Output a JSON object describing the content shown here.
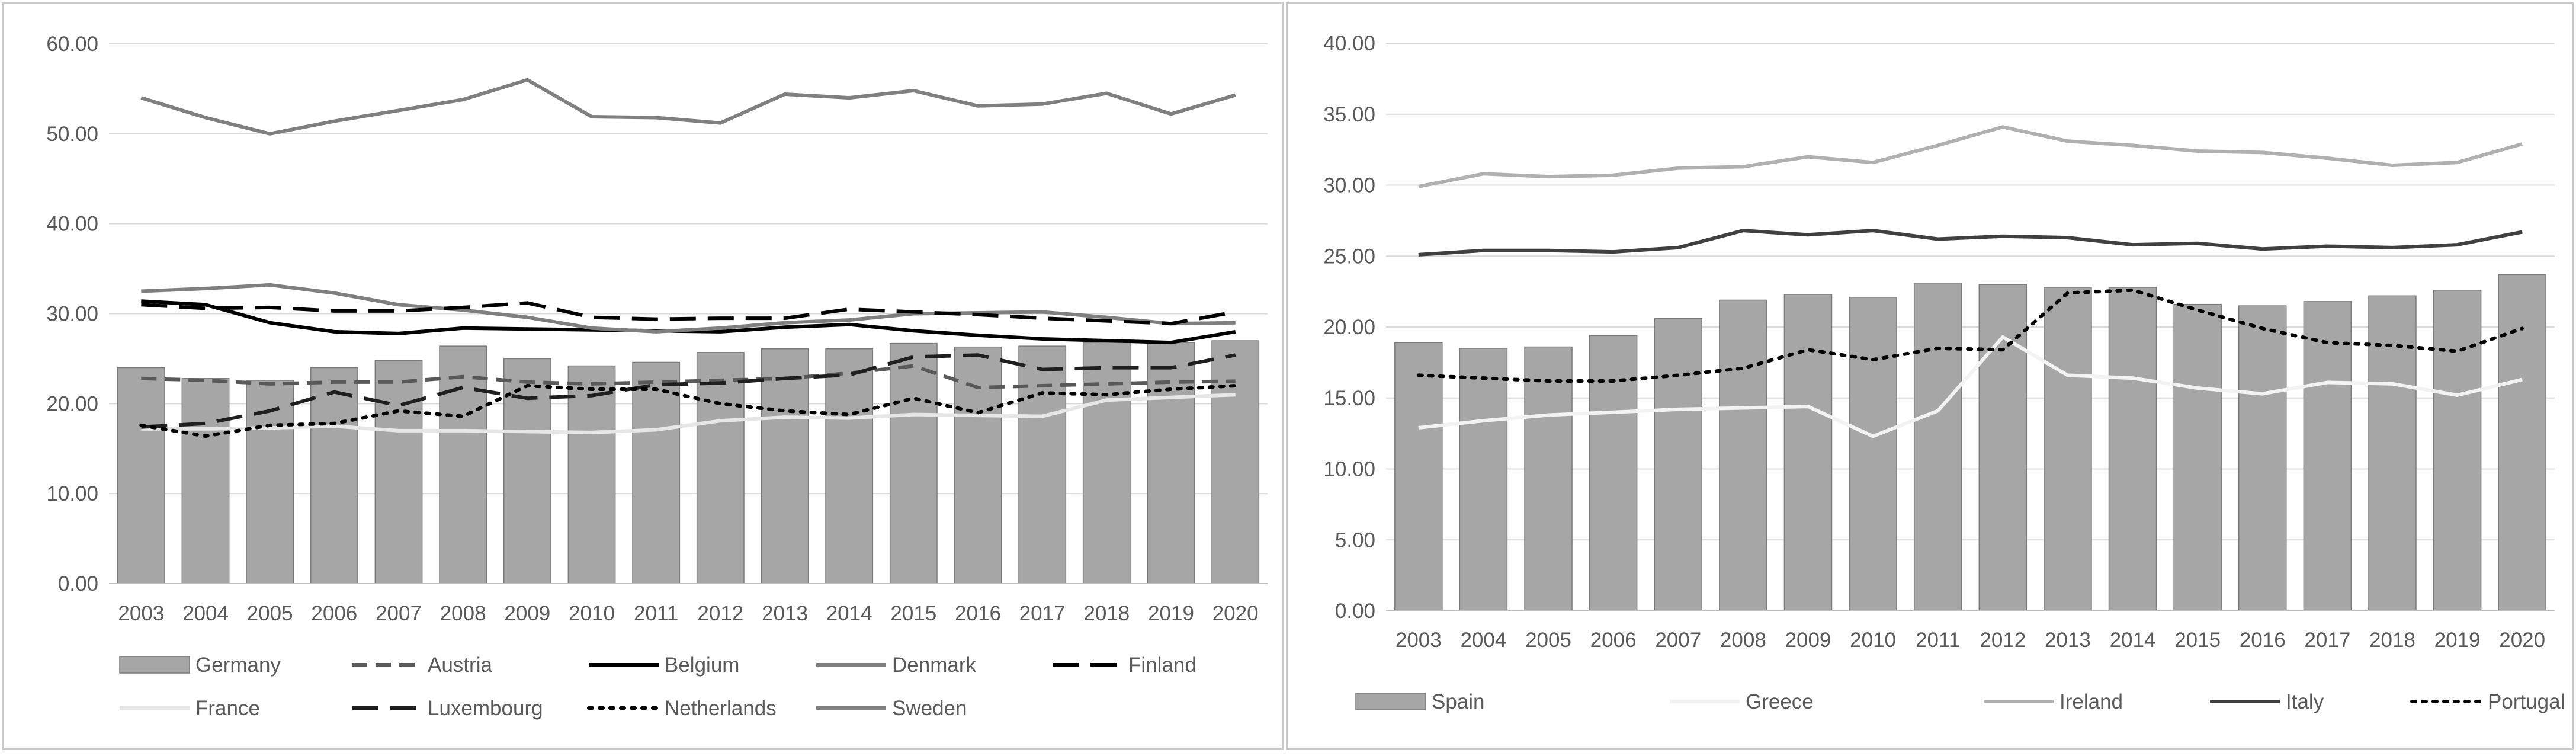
{
  "chart_data": [
    {
      "type": "bar+line",
      "title": "",
      "xlabel": "",
      "ylabel": "",
      "ylim": [
        0,
        60
      ],
      "yticks": [
        "0.00",
        "10.00",
        "20.00",
        "30.00",
        "40.00",
        "50.00",
        "60.00"
      ],
      "categories": [
        "2003",
        "2004",
        "2005",
        "2006",
        "2007",
        "2008",
        "2009",
        "2010",
        "2011",
        "2012",
        "2013",
        "2014",
        "2015",
        "2016",
        "2017",
        "2018",
        "2019",
        "2020"
      ],
      "grid": true,
      "legend_position": "bottom",
      "bar_series": {
        "name": "Germany",
        "color": "#a6a6a6",
        "values": [
          24.0,
          22.8,
          22.6,
          24.0,
          24.8,
          26.4,
          25.0,
          24.2,
          24.6,
          25.7,
          26.1,
          26.1,
          26.7,
          26.3,
          26.4,
          26.8,
          26.8,
          27.0
        ]
      },
      "line_series": [
        {
          "name": "Austria",
          "style": "dashed",
          "color": "#595959",
          "values": [
            22.8,
            22.6,
            22.2,
            22.4,
            22.4,
            23.0,
            22.4,
            22.2,
            22.4,
            22.6,
            22.8,
            23.4,
            24.2,
            21.8,
            22.0,
            22.2,
            22.4,
            22.5
          ]
        },
        {
          "name": "Belgium",
          "style": "solid",
          "color": "#000000",
          "values": [
            31.4,
            31.0,
            29.0,
            28.0,
            27.8,
            28.4,
            28.3,
            28.2,
            28.1,
            28.0,
            28.5,
            28.8,
            28.1,
            27.6,
            27.2,
            27.0,
            26.8,
            28.0
          ]
        },
        {
          "name": "Denmark",
          "style": "solid",
          "color": "#7f7f7f",
          "values": [
            32.5,
            32.8,
            33.2,
            32.3,
            31.0,
            30.4,
            29.6,
            28.4,
            28.0,
            28.4,
            29.0,
            29.3,
            30.0,
            30.1,
            30.2,
            29.6,
            28.9,
            29.0
          ]
        },
        {
          "name": "Finland",
          "style": "longdash",
          "color": "#000000",
          "values": [
            31.0,
            30.6,
            30.7,
            30.3,
            30.3,
            30.7,
            31.2,
            29.6,
            29.4,
            29.5,
            29.5,
            30.5,
            30.2,
            29.9,
            29.5,
            29.2,
            28.9,
            30.2
          ]
        },
        {
          "name": "France",
          "style": "solid",
          "color": "#e6e6e6",
          "values": [
            17.2,
            17.2,
            17.3,
            17.5,
            17.0,
            17.0,
            16.9,
            16.8,
            17.1,
            18.1,
            18.5,
            18.4,
            18.8,
            18.7,
            18.6,
            20.4,
            20.7,
            21.0
          ]
        },
        {
          "name": "Luxembourg",
          "style": "longdash",
          "color": "#1f1f1f",
          "values": [
            17.4,
            17.8,
            19.2,
            21.3,
            19.8,
            21.8,
            20.6,
            20.9,
            22.1,
            22.3,
            22.8,
            23.2,
            25.2,
            25.4,
            23.8,
            24.0,
            24.0,
            25.4
          ]
        },
        {
          "name": "Netherlands",
          "style": "dotted",
          "color": "#000000",
          "values": [
            17.6,
            16.4,
            17.6,
            17.8,
            19.2,
            18.6,
            22.0,
            21.6,
            21.6,
            20.0,
            19.2,
            18.8,
            20.6,
            19.0,
            21.2,
            21.0,
            21.6,
            22.0
          ]
        },
        {
          "name": "Sweden",
          "style": "solid",
          "color": "#7f7f7f",
          "values": [
            54.0,
            51.8,
            50.0,
            51.4,
            52.6,
            53.8,
            56.0,
            51.9,
            51.8,
            51.2,
            54.4,
            54.0,
            54.8,
            53.1,
            53.3,
            54.5,
            52.2,
            54.3
          ]
        }
      ]
    },
    {
      "type": "bar+line",
      "title": "",
      "xlabel": "",
      "ylabel": "",
      "ylim": [
        0,
        40
      ],
      "yticks": [
        "0.00",
        "5.00",
        "10.00",
        "15.00",
        "20.00",
        "25.00",
        "30.00",
        "35.00",
        "40.00"
      ],
      "categories": [
        "2003",
        "2004",
        "2005",
        "2006",
        "2007",
        "2008",
        "2009",
        "2010",
        "2011",
        "2012",
        "2013",
        "2014",
        "2015",
        "2016",
        "2017",
        "2018",
        "2019",
        "2020"
      ],
      "grid": true,
      "legend_position": "bottom",
      "bar_series": {
        "name": "Spain",
        "color": "#a6a6a6",
        "values": [
          18.9,
          18.5,
          18.6,
          19.4,
          20.6,
          21.9,
          22.3,
          22.1,
          23.1,
          23.0,
          22.8,
          22.8,
          21.6,
          21.5,
          21.8,
          22.2,
          22.6,
          23.7
        ]
      },
      "line_series": [
        {
          "name": "Greece",
          "style": "solid",
          "color": "#f2f2f2",
          "values": [
            12.9,
            13.4,
            13.8,
            14.0,
            14.2,
            14.3,
            14.4,
            12.3,
            14.1,
            19.3,
            16.6,
            16.4,
            15.7,
            15.3,
            16.1,
            16.0,
            15.2,
            16.3
          ]
        },
        {
          "name": "Ireland",
          "style": "solid",
          "color": "#b0b0b0",
          "values": [
            29.9,
            30.8,
            30.6,
            30.7,
            31.2,
            31.3,
            32.0,
            31.6,
            32.8,
            34.1,
            33.1,
            32.8,
            32.4,
            32.3,
            31.9,
            31.4,
            31.6,
            32.9
          ]
        },
        {
          "name": "Italy",
          "style": "solid",
          "color": "#404040",
          "values": [
            25.1,
            25.4,
            25.4,
            25.3,
            25.6,
            26.8,
            26.5,
            26.8,
            26.2,
            26.4,
            26.3,
            25.8,
            25.9,
            25.5,
            25.7,
            25.6,
            25.8,
            26.7
          ]
        },
        {
          "name": "Portugal",
          "style": "dotted",
          "color": "#000000",
          "values": [
            16.6,
            16.4,
            16.2,
            16.2,
            16.6,
            17.1,
            18.4,
            17.7,
            18.5,
            18.4,
            22.4,
            22.6,
            21.2,
            19.9,
            18.9,
            18.7,
            18.3,
            19.9
          ]
        }
      ]
    }
  ]
}
